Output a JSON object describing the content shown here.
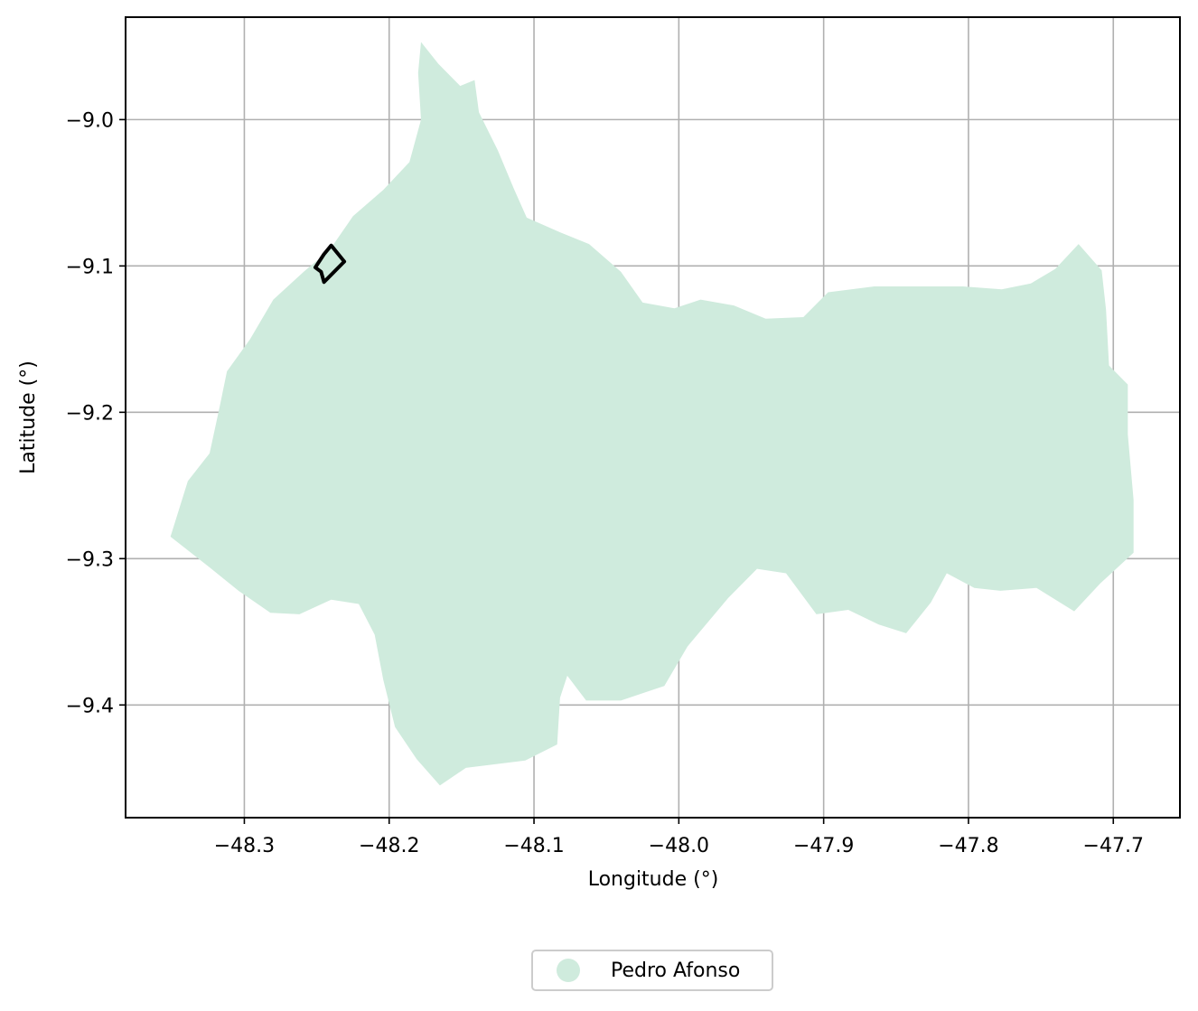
{
  "map": {
    "xlabel": "Longitude (°)",
    "ylabel": "Latitude (°)",
    "x_ticks": [
      "−48.3",
      "−48.2",
      "−48.1",
      "−48.0",
      "−47.9",
      "−47.8",
      "−47.7"
    ],
    "x_tick_values": [
      -48.3,
      -48.2,
      -48.1,
      -48.0,
      -47.9,
      -47.8,
      -47.7
    ],
    "y_ticks": [
      "−9.0",
      "−9.1",
      "−9.2",
      "−9.3",
      "−9.4"
    ],
    "y_tick_values": [
      -9.0,
      -9.1,
      -9.2,
      -9.3,
      -9.4
    ],
    "xlim": [
      -48.382,
      -47.654
    ],
    "ylim": [
      -9.477,
      -8.93
    ],
    "grid": true,
    "region": {
      "name": "Pedro Afonso",
      "color": "#cfebdd",
      "outline_lonlat": [
        [
          -48.178,
          -8.947
        ],
        [
          -48.166,
          -8.962
        ],
        [
          -48.151,
          -8.977
        ],
        [
          -48.141,
          -8.973
        ],
        [
          -48.138,
          -8.995
        ],
        [
          -48.125,
          -9.021
        ],
        [
          -48.114,
          -9.047
        ],
        [
          -48.105,
          -9.067
        ],
        [
          -48.082,
          -9.077
        ],
        [
          -48.062,
          -9.085
        ],
        [
          -48.04,
          -9.104
        ],
        [
          -48.025,
          -9.125
        ],
        [
          -48.003,
          -9.129
        ],
        [
          -47.985,
          -9.123
        ],
        [
          -47.962,
          -9.127
        ],
        [
          -47.94,
          -9.136
        ],
        [
          -47.914,
          -9.135
        ],
        [
          -47.897,
          -9.118
        ],
        [
          -47.865,
          -9.114
        ],
        [
          -47.838,
          -9.114
        ],
        [
          -47.804,
          -9.114
        ],
        [
          -47.777,
          -9.116
        ],
        [
          -47.757,
          -9.112
        ],
        [
          -47.74,
          -9.102
        ],
        [
          -47.724,
          -9.085
        ],
        [
          -47.708,
          -9.103
        ],
        [
          -47.705,
          -9.13
        ],
        [
          -47.703,
          -9.168
        ],
        [
          -47.69,
          -9.181
        ],
        [
          -47.69,
          -9.215
        ],
        [
          -47.686,
          -9.26
        ],
        [
          -47.686,
          -9.296
        ],
        [
          -47.709,
          -9.317
        ],
        [
          -47.727,
          -9.336
        ],
        [
          -47.753,
          -9.32
        ],
        [
          -47.778,
          -9.322
        ],
        [
          -47.796,
          -9.32
        ],
        [
          -47.815,
          -9.31
        ],
        [
          -47.826,
          -9.33
        ],
        [
          -47.843,
          -9.351
        ],
        [
          -47.862,
          -9.345
        ],
        [
          -47.883,
          -9.335
        ],
        [
          -47.905,
          -9.338
        ],
        [
          -47.926,
          -9.31
        ],
        [
          -47.946,
          -9.307
        ],
        [
          -47.966,
          -9.327
        ],
        [
          -47.994,
          -9.36
        ],
        [
          -48.01,
          -9.387
        ],
        [
          -48.04,
          -9.397
        ],
        [
          -48.064,
          -9.397
        ],
        [
          -48.077,
          -9.38
        ],
        [
          -48.082,
          -9.395
        ],
        [
          -48.084,
          -9.427
        ],
        [
          -48.106,
          -9.438
        ],
        [
          -48.147,
          -9.443
        ],
        [
          -48.165,
          -9.455
        ],
        [
          -48.181,
          -9.437
        ],
        [
          -48.196,
          -9.415
        ],
        [
          -48.204,
          -9.383
        ],
        [
          -48.21,
          -9.352
        ],
        [
          -48.221,
          -9.331
        ],
        [
          -48.24,
          -9.328
        ],
        [
          -48.262,
          -9.338
        ],
        [
          -48.282,
          -9.337
        ],
        [
          -48.304,
          -9.322
        ],
        [
          -48.324,
          -9.306
        ],
        [
          -48.351,
          -9.285
        ],
        [
          -48.339,
          -9.247
        ],
        [
          -48.324,
          -9.228
        ],
        [
          -48.317,
          -9.196
        ],
        [
          -48.312,
          -9.172
        ],
        [
          -48.296,
          -9.15
        ],
        [
          -48.28,
          -9.123
        ],
        [
          -48.259,
          -9.104
        ],
        [
          -48.241,
          -9.089
        ],
        [
          -48.225,
          -9.066
        ],
        [
          -48.204,
          -9.048
        ],
        [
          -48.186,
          -9.029
        ],
        [
          -48.178,
          -9.0
        ],
        [
          -48.18,
          -8.968
        ]
      ]
    },
    "highlight": {
      "color": "#000000",
      "outline_lonlat": [
        [
          -48.24,
          -9.086
        ],
        [
          -48.231,
          -9.097
        ],
        [
          -48.245,
          -9.111
        ],
        [
          -48.247,
          -9.104
        ],
        [
          -48.251,
          -9.101
        ],
        [
          -48.245,
          -9.092
        ],
        [
          -48.24,
          -9.086
        ]
      ]
    }
  },
  "legend": {
    "label": "Pedro Afonso",
    "color": "#cfebdd"
  }
}
